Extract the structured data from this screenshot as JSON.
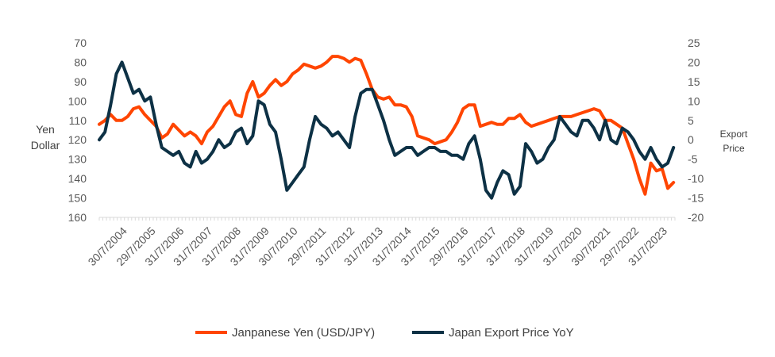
{
  "chart_data": {
    "type": "line",
    "title": "",
    "ylabel_left": [
      "Yen",
      "Dollar"
    ],
    "ylabel_right": [
      "Export",
      "Price"
    ],
    "left_axis": {
      "ylim": [
        70,
        160
      ],
      "inverted": true,
      "ticks": [
        70,
        80,
        90,
        100,
        110,
        120,
        130,
        140,
        150,
        160
      ]
    },
    "right_axis": {
      "ylim": [
        -20,
        25
      ],
      "ticks": [
        25,
        20,
        15,
        10,
        5,
        0,
        -5,
        -10,
        -15,
        -20
      ]
    },
    "x_tick_labels": [
      "30/7/2004",
      "29/7/2005",
      "31/7/2006",
      "31/7/2007",
      "31/7/2008",
      "31/7/2009",
      "30/7/2010",
      "29/7/2011",
      "31/7/2012",
      "31/7/2013",
      "31/7/2014",
      "31/7/2015",
      "29/7/2016",
      "31/7/2017",
      "31/7/2018",
      "31/7/2019",
      "31/7/2020",
      "30/7/2021",
      "29/7/2022",
      "31/7/2023"
    ],
    "xlim": [
      2003.6,
      2023.85
    ],
    "grid": false,
    "legend_position": "bottom",
    "series": [
      {
        "name": "Janpanese Yen (USD/JPY)",
        "axis": "left",
        "color": "#FF4500",
        "x": [
          2003.6,
          2003.8,
          2004.0,
          2004.2,
          2004.4,
          2004.6,
          2004.8,
          2005.0,
          2005.2,
          2005.4,
          2005.6,
          2005.8,
          2006.0,
          2006.2,
          2006.4,
          2006.6,
          2006.8,
          2007.0,
          2007.2,
          2007.4,
          2007.6,
          2007.8,
          2008.0,
          2008.2,
          2008.4,
          2008.6,
          2008.8,
          2009.0,
          2009.2,
          2009.4,
          2009.6,
          2009.8,
          2010.0,
          2010.2,
          2010.4,
          2010.6,
          2010.8,
          2011.0,
          2011.2,
          2011.4,
          2011.6,
          2011.8,
          2012.0,
          2012.2,
          2012.4,
          2012.6,
          2012.8,
          2013.0,
          2013.2,
          2013.4,
          2013.6,
          2013.8,
          2014.0,
          2014.2,
          2014.4,
          2014.6,
          2014.8,
          2015.0,
          2015.2,
          2015.4,
          2015.6,
          2015.8,
          2016.0,
          2016.2,
          2016.4,
          2016.6,
          2016.8,
          2017.0,
          2017.2,
          2017.4,
          2017.6,
          2017.8,
          2018.0,
          2018.2,
          2018.4,
          2018.6,
          2018.8,
          2019.0,
          2019.2,
          2019.4,
          2019.6,
          2019.8,
          2020.0,
          2020.2,
          2020.4,
          2020.6,
          2020.8,
          2021.0,
          2021.2,
          2021.4,
          2021.6,
          2021.8,
          2022.0,
          2022.2,
          2022.4,
          2022.6,
          2022.8,
          2023.0,
          2023.2,
          2023.4,
          2023.6,
          2023.8
        ],
        "values": [
          112,
          110,
          107,
          110,
          110,
          108,
          104,
          103,
          107,
          110,
          113,
          119,
          117,
          112,
          115,
          118,
          116,
          118,
          122,
          116,
          113,
          108,
          103,
          100,
          107,
          108,
          96,
          90,
          98,
          96,
          92,
          89,
          92,
          90,
          86,
          84,
          81,
          82,
          83,
          82,
          80,
          77,
          77,
          78,
          80,
          78,
          79,
          86,
          94,
          98,
          99,
          98,
          102,
          102,
          103,
          108,
          118,
          119,
          120,
          122,
          121,
          120,
          116,
          111,
          104,
          102,
          102,
          113,
          112,
          111,
          112,
          112,
          109,
          109,
          107,
          111,
          113,
          112,
          111,
          110,
          109,
          108,
          108,
          108,
          107,
          106,
          105,
          104,
          105,
          110,
          110,
          112,
          114,
          122,
          130,
          140,
          148,
          132,
          136,
          135,
          145,
          142
        ]
      },
      {
        "name": "Japan Export Price YoY",
        "axis": "right",
        "color": "#0D3145",
        "x": [
          2003.6,
          2003.8,
          2004.0,
          2004.2,
          2004.4,
          2004.6,
          2004.8,
          2005.0,
          2005.2,
          2005.4,
          2005.6,
          2005.8,
          2006.0,
          2006.2,
          2006.4,
          2006.6,
          2006.8,
          2007.0,
          2007.2,
          2007.4,
          2007.6,
          2007.8,
          2008.0,
          2008.2,
          2008.4,
          2008.6,
          2008.8,
          2009.0,
          2009.2,
          2009.4,
          2009.6,
          2009.8,
          2010.0,
          2010.2,
          2010.4,
          2010.6,
          2010.8,
          2011.0,
          2011.2,
          2011.4,
          2011.6,
          2011.8,
          2012.0,
          2012.2,
          2012.4,
          2012.6,
          2012.8,
          2013.0,
          2013.2,
          2013.4,
          2013.6,
          2013.8,
          2014.0,
          2014.2,
          2014.4,
          2014.6,
          2014.8,
          2015.0,
          2015.2,
          2015.4,
          2015.6,
          2015.8,
          2016.0,
          2016.2,
          2016.4,
          2016.6,
          2016.8,
          2017.0,
          2017.2,
          2017.4,
          2017.6,
          2017.8,
          2018.0,
          2018.2,
          2018.4,
          2018.6,
          2018.8,
          2019.0,
          2019.2,
          2019.4,
          2019.6,
          2019.8,
          2020.0,
          2020.2,
          2020.4,
          2020.6,
          2020.8,
          2021.0,
          2021.2,
          2021.4,
          2021.6,
          2021.8,
          2022.0,
          2022.2,
          2022.4,
          2022.6,
          2022.8,
          2023.0,
          2023.2,
          2023.4,
          2023.6,
          2023.8
        ],
        "values": [
          0,
          2,
          9,
          17,
          20,
          16,
          12,
          13,
          10,
          11,
          4,
          -2,
          -3,
          -4,
          -3,
          -6,
          -7,
          -3,
          -6,
          -5,
          -3,
          0,
          -2,
          -1,
          2,
          3,
          -1,
          1,
          10,
          9,
          4,
          2,
          -5,
          -13,
          -11,
          -9,
          -7,
          0,
          6,
          4,
          3,
          1,
          2,
          0,
          -2,
          6,
          12,
          13,
          13,
          9,
          5,
          0,
          -4,
          -3,
          -2,
          -2,
          -4,
          -3,
          -2,
          -2,
          -3,
          -3,
          -4,
          -4,
          -5,
          -1,
          1,
          -5,
          -13,
          -15,
          -11,
          -8,
          -9,
          -14,
          -12,
          -1,
          -3,
          -6,
          -5,
          -2,
          0,
          6,
          4,
          2,
          1,
          5,
          5,
          3,
          0,
          5,
          0,
          -1,
          3,
          2,
          0,
          -3,
          -5,
          -2,
          -5,
          -7,
          -6,
          -2
        ],
        "y_end": -2
      }
    ]
  }
}
